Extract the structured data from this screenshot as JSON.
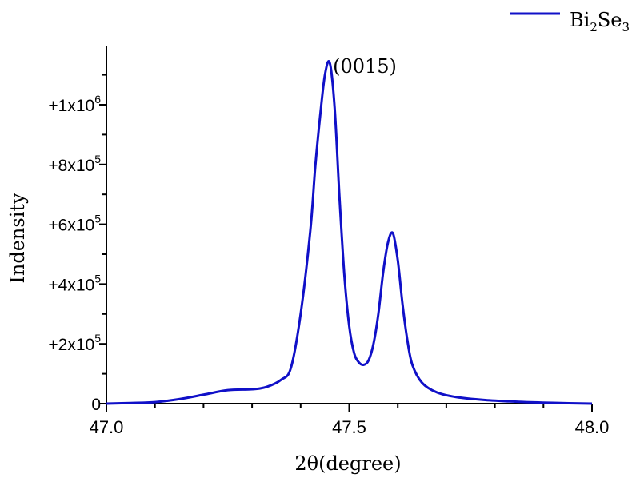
{
  "chart_data": {
    "type": "line",
    "xlabel": "2θ(degree)",
    "ylabel": "Indensity",
    "annotation": "(0015)",
    "xlim": [
      47.0,
      48.0
    ],
    "ylim": [
      0,
      1200000
    ],
    "x_ticks": [
      47.0,
      47.5,
      48.0
    ],
    "x_tick_labels": [
      "47.0",
      "47.5",
      "48.0"
    ],
    "y_ticks": [
      0,
      200000,
      400000,
      600000,
      800000,
      1000000
    ],
    "y_tick_labels": [
      {
        "mantissa": "0",
        "exp": ""
      },
      {
        "mantissa": "+2x10",
        "exp": "5"
      },
      {
        "mantissa": "+4x10",
        "exp": "5"
      },
      {
        "mantissa": "+6x10",
        "exp": "5"
      },
      {
        "mantissa": "+8x10",
        "exp": "5"
      },
      {
        "mantissa": "+1x10",
        "exp": "6"
      }
    ],
    "legend": {
      "position": "top-right",
      "name": "Bi",
      "sub1": "2",
      "mid": "Se",
      "sub2": "3"
    },
    "grid": false,
    "series": [
      {
        "color": "#1010c8",
        "x": [
          47.0,
          47.05,
          47.1,
          47.15,
          47.2,
          47.25,
          47.3,
          47.33,
          47.36,
          47.38,
          47.4,
          47.42,
          47.43,
          47.44,
          47.45,
          47.46,
          47.47,
          47.48,
          47.49,
          47.5,
          47.51,
          47.52,
          47.53,
          47.54,
          47.55,
          47.56,
          47.57,
          47.58,
          47.59,
          47.6,
          47.61,
          47.62,
          47.63,
          47.65,
          47.68,
          47.72,
          47.78,
          47.85,
          47.92,
          48.0
        ],
        "y": [
          0,
          2000,
          5000,
          15000,
          30000,
          45000,
          48000,
          56000,
          80000,
          120000,
          300000,
          580000,
          790000,
          960000,
          1100000,
          1140000,
          990000,
          690000,
          430000,
          260000,
          170000,
          138000,
          130000,
          145000,
          200000,
          300000,
          440000,
          540000,
          570000,
          480000,
          330000,
          210000,
          130000,
          70000,
          38000,
          22000,
          12000,
          6000,
          2500,
          0
        ]
      }
    ]
  }
}
